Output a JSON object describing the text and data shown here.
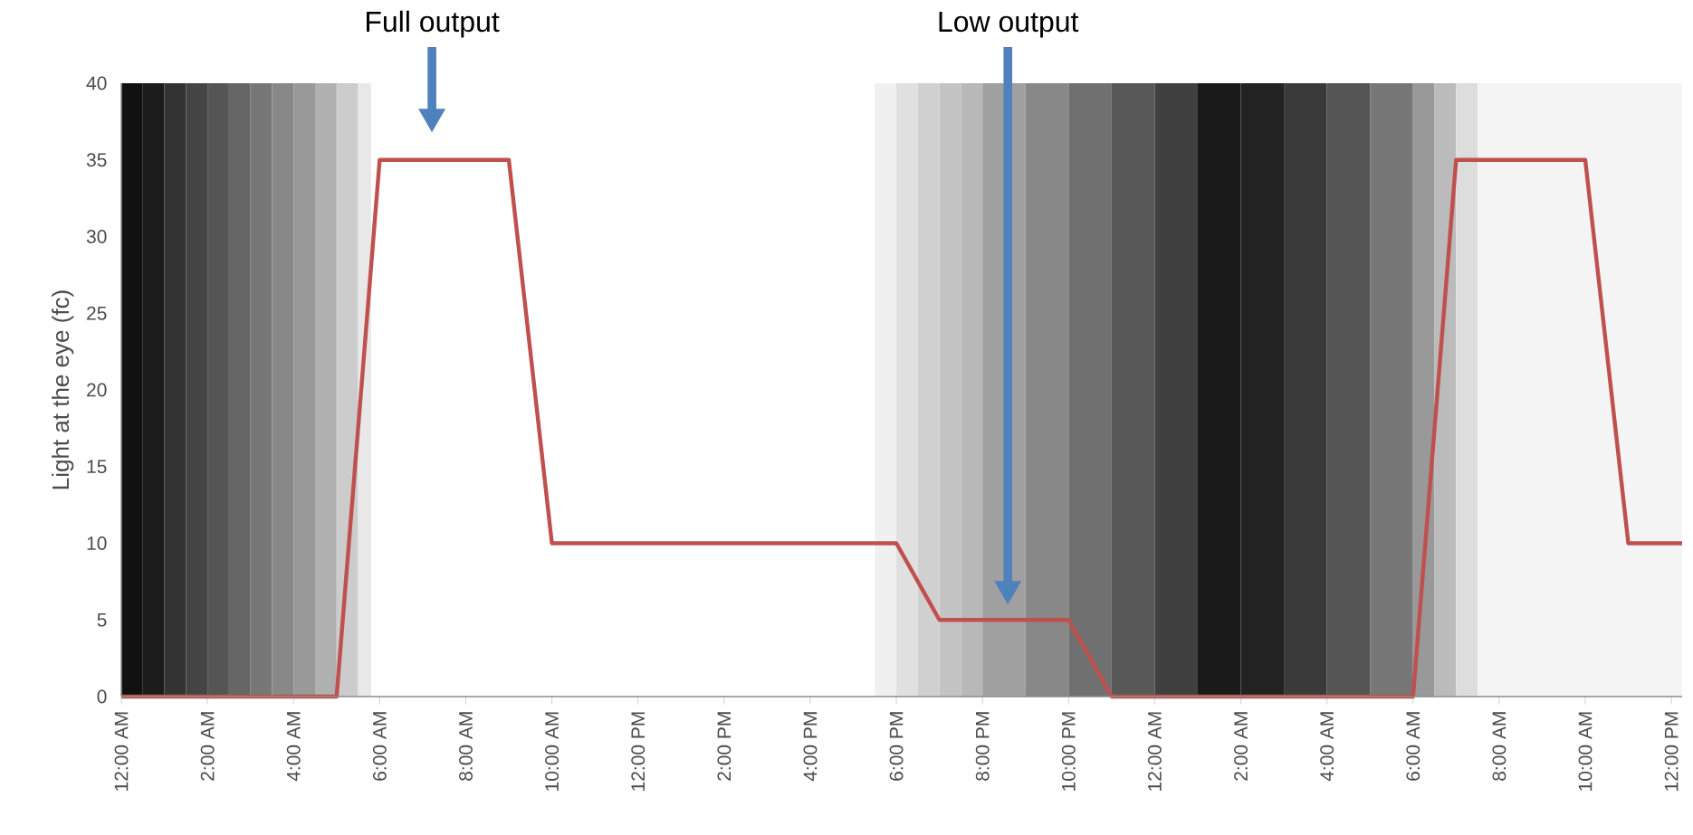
{
  "chart_data": {
    "type": "line",
    "ylabel": "Light at the eye (fc)",
    "x": [
      "2000-01-01T00:00",
      "2000-01-01T05:00",
      "2000-01-01T06:00",
      "2000-01-01T09:00",
      "2000-01-01T10:00",
      "2000-01-01T18:00",
      "2000-01-01T19:00",
      "2000-01-01T22:00",
      "2000-01-01T23:00",
      "2000-01-02T06:00",
      "2000-01-02T07:00",
      "2000-01-02T10:00",
      "2000-01-02T11:00",
      "2000-01-02T12:15"
    ],
    "series": [
      {
        "color": "#c0504d",
        "values": [
          0,
          0,
          35,
          35,
          10,
          10,
          5,
          5,
          0,
          0,
          35,
          35,
          10,
          10
        ]
      }
    ],
    "xlim": [
      "2000-01-01T00:00",
      "2000-01-02T12:15"
    ],
    "ylim": [
      0,
      40
    ],
    "yticks": [
      0,
      5,
      10,
      15,
      20,
      25,
      30,
      35,
      40
    ],
    "xticks": [
      {
        "value": "2000-01-01T00:00",
        "label": "12:00 AM"
      },
      {
        "value": "2000-01-01T02:00",
        "label": "2:00 AM"
      },
      {
        "value": "2000-01-01T04:00",
        "label": "4:00 AM"
      },
      {
        "value": "2000-01-01T06:00",
        "label": "6:00 AM"
      },
      {
        "value": "2000-01-01T08:00",
        "label": "8:00 AM"
      },
      {
        "value": "2000-01-01T10:00",
        "label": "10:00 AM"
      },
      {
        "value": "2000-01-01T12:00",
        "label": "12:00 PM"
      },
      {
        "value": "2000-01-01T14:00",
        "label": "2:00 PM"
      },
      {
        "value": "2000-01-01T16:00",
        "label": "4:00 PM"
      },
      {
        "value": "2000-01-01T18:00",
        "label": "6:00 PM"
      },
      {
        "value": "2000-01-01T20:00",
        "label": "8:00 PM"
      },
      {
        "value": "2000-01-01T22:00",
        "label": "10:00 PM"
      },
      {
        "value": "2000-01-02T00:00",
        "label": "12:00 AM"
      },
      {
        "value": "2000-01-02T02:00",
        "label": "2:00 AM"
      },
      {
        "value": "2000-01-02T04:00",
        "label": "4:00 AM"
      },
      {
        "value": "2000-01-02T06:00",
        "label": "6:00 AM"
      },
      {
        "value": "2000-01-02T08:00",
        "label": "8:00 AM"
      },
      {
        "value": "2000-01-02T10:00",
        "label": "10:00 AM"
      },
      {
        "value": "2000-01-02T12:00",
        "label": "12:00 PM"
      }
    ],
    "annotations": [
      "Full output",
      "Low output"
    ],
    "bands": [
      {
        "axis": "x",
        "from": "2000-01-01T00:00",
        "to": "2000-01-01T00:30",
        "color": "#111111"
      },
      {
        "axis": "x",
        "from": "2000-01-01T00:30",
        "to": "2000-01-01T01:00",
        "color": "#1c1c1c"
      },
      {
        "axis": "x",
        "from": "2000-01-01T01:00",
        "to": "2000-01-01T01:30",
        "color": "#333333"
      },
      {
        "axis": "x",
        "from": "2000-01-01T01:30",
        "to": "2000-01-01T02:00",
        "color": "#444444"
      },
      {
        "axis": "x",
        "from": "2000-01-01T02:00",
        "to": "2000-01-01T02:30",
        "color": "#555555"
      },
      {
        "axis": "x",
        "from": "2000-01-01T02:30",
        "to": "2000-01-01T03:00",
        "color": "#666666"
      },
      {
        "axis": "x",
        "from": "2000-01-01T03:00",
        "to": "2000-01-01T03:30",
        "color": "#777777"
      },
      {
        "axis": "x",
        "from": "2000-01-01T03:30",
        "to": "2000-01-01T04:00",
        "color": "#888888"
      },
      {
        "axis": "x",
        "from": "2000-01-01T04:00",
        "to": "2000-01-01T04:30",
        "color": "#999999"
      },
      {
        "axis": "x",
        "from": "2000-01-01T04:30",
        "to": "2000-01-01T05:00",
        "color": "#b0b0b0"
      },
      {
        "axis": "x",
        "from": "2000-01-01T05:00",
        "to": "2000-01-01T05:30",
        "color": "#cccccc"
      },
      {
        "axis": "x",
        "from": "2000-01-01T05:30",
        "to": "2000-01-01T05:48",
        "color": "#e8e8e8"
      },
      {
        "axis": "x",
        "from": "2000-01-01T17:30",
        "to": "2000-01-01T18:00",
        "color": "#f0f0f0"
      },
      {
        "axis": "x",
        "from": "2000-01-01T18:00",
        "to": "2000-01-01T18:30",
        "color": "#e0e0e0"
      },
      {
        "axis": "x",
        "from": "2000-01-01T18:30",
        "to": "2000-01-01T19:00",
        "color": "#d0d0d0"
      },
      {
        "axis": "x",
        "from": "2000-01-01T19:00",
        "to": "2000-01-01T19:30",
        "color": "#c4c4c4"
      },
      {
        "axis": "x",
        "from": "2000-01-01T19:30",
        "to": "2000-01-01T20:00",
        "color": "#b8b8b8"
      },
      {
        "axis": "x",
        "from": "2000-01-01T20:00",
        "to": "2000-01-01T21:00",
        "color": "#a0a0a0"
      },
      {
        "axis": "x",
        "from": "2000-01-01T21:00",
        "to": "2000-01-01T22:00",
        "color": "#888888"
      },
      {
        "axis": "x",
        "from": "2000-01-01T22:00",
        "to": "2000-01-01T23:00",
        "color": "#707070"
      },
      {
        "axis": "x",
        "from": "2000-01-01T23:00",
        "to": "2000-01-02T00:00",
        "color": "#585858"
      },
      {
        "axis": "x",
        "from": "2000-01-02T00:00",
        "to": "2000-01-02T01:00",
        "color": "#404040"
      },
      {
        "axis": "x",
        "from": "2000-01-02T01:00",
        "to": "2000-01-02T02:00",
        "color": "#1a1a1a"
      },
      {
        "axis": "x",
        "from": "2000-01-02T02:00",
        "to": "2000-01-02T03:00",
        "color": "#222222"
      },
      {
        "axis": "x",
        "from": "2000-01-02T03:00",
        "to": "2000-01-02T04:00",
        "color": "#3a3a3a"
      },
      {
        "axis": "x",
        "from": "2000-01-02T04:00",
        "to": "2000-01-02T05:00",
        "color": "#555555"
      },
      {
        "axis": "x",
        "from": "2000-01-02T05:00",
        "to": "2000-01-02T06:00",
        "color": "#777777"
      },
      {
        "axis": "x",
        "from": "2000-01-02T06:00",
        "to": "2000-01-02T06:30",
        "color": "#999999"
      },
      {
        "axis": "x",
        "from": "2000-01-02T06:30",
        "to": "2000-01-02T07:00",
        "color": "#bbbbbb"
      },
      {
        "axis": "x",
        "from": "2000-01-02T07:00",
        "to": "2000-01-02T07:30",
        "color": "#dddddd"
      },
      {
        "axis": "x",
        "from": "2000-01-02T07:30",
        "to": "2000-01-02T12:15",
        "color": "#f4f4f4"
      }
    ],
    "grid": false,
    "marker": "none",
    "line_style": "solid"
  }
}
